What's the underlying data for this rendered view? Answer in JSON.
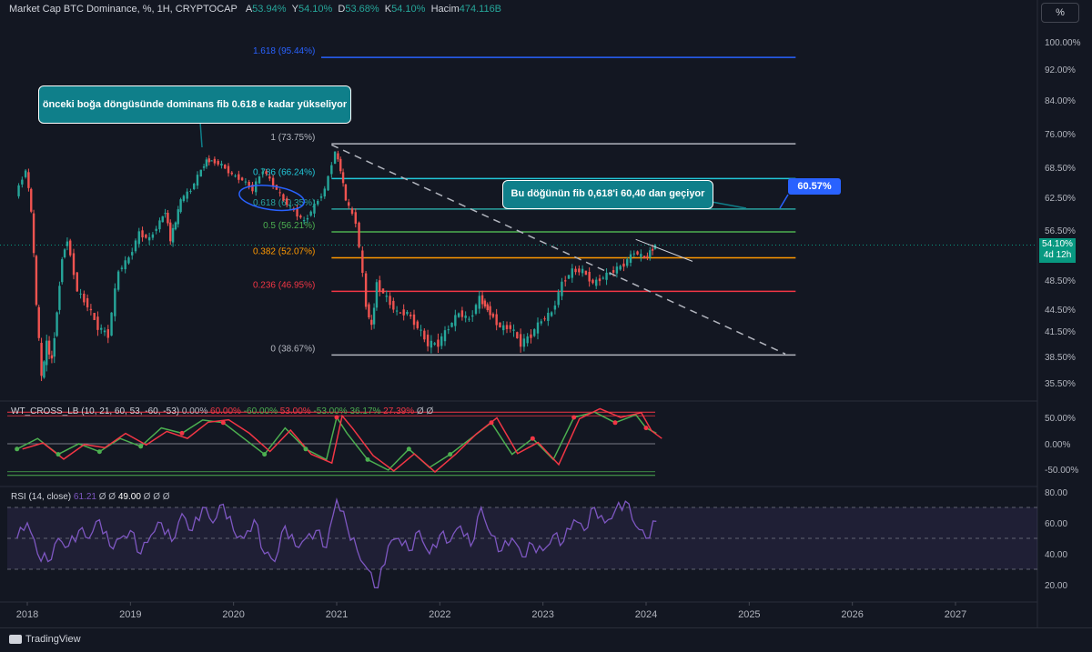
{
  "header": {
    "symbol": "Market Cap BTC Dominance, %, 1H, CRYPTOCAP",
    "o_label": "A",
    "o_value": "53.94%",
    "h_label": "Y",
    "h_value": "54.10%",
    "l_label": "D",
    "l_value": "53.68%",
    "c_label": "K",
    "c_value": "54.10%",
    "vol_label": "Hacim",
    "vol_value": "474.116B",
    "scale_button": "%"
  },
  "colors": {
    "background": "#131722",
    "up": "#26a69a",
    "down": "#ef5350",
    "fib_1": "#b2b5be",
    "fib_786": "#22c7d8",
    "fib_618": "#2aa3a0",
    "fib_5": "#4caf50",
    "fib_382": "#ff9800",
    "fib_236": "#f23645",
    "fib_0": "#b2b5be",
    "fib_1618": "#2962ff",
    "rsi": "#7e57c2"
  },
  "annotations": {
    "note1": "önceki boğa döngüsünde dominans fib 0.618 e kadar yükseliyor",
    "note2": "Bu döğünün fib 0,618'i 60,40 dan geçiyor",
    "callout": "60.57%",
    "last_price": "54.10%",
    "last_time": "4d 12h"
  },
  "fib_levels": [
    {
      "label": "1.618 (95.44%)",
      "value": 95.44,
      "color": "#2962ff"
    },
    {
      "label": "1 (73.75%)",
      "value": 73.75,
      "color": "#b2b5be"
    },
    {
      "label": "0.786 (66.24%)",
      "value": 66.24,
      "color": "#22c7d8"
    },
    {
      "label": "0.618 (60.35%)",
      "value": 60.35,
      "color": "#2aa3a0"
    },
    {
      "label": "0.5 (56.21%)",
      "value": 56.21,
      "color": "#4caf50"
    },
    {
      "label": "0.382 (52.07%)",
      "value": 52.07,
      "color": "#ff9800"
    },
    {
      "label": "0.236 (46.95%)",
      "value": 46.95,
      "color": "#f23645"
    },
    {
      "label": "0 (38.67%)",
      "value": 38.67,
      "color": "#b2b5be"
    }
  ],
  "wt_title": "WT_CROSS_LB (10, 21, 60, 53, -60, -53)",
  "wt_values": [
    {
      "text": "0.00%",
      "color": "#b2b5be"
    },
    {
      "text": "60.00%",
      "color": "#f23645"
    },
    {
      "text": "-60.00%",
      "color": "#4caf50"
    },
    {
      "text": "53.00%",
      "color": "#f23645"
    },
    {
      "text": "-53.00%",
      "color": "#4caf50"
    },
    {
      "text": "36.17%",
      "color": "#4caf50"
    },
    {
      "text": "27.39%",
      "color": "#f23645"
    },
    {
      "text": "Ø",
      "color": "#b2b5be"
    },
    {
      "text": "Ø",
      "color": "#b2b5be"
    }
  ],
  "rsi_title": "RSI (14, close)",
  "rsi_values": [
    {
      "text": "61.21",
      "color": "#7e57c2"
    },
    {
      "text": "Ø",
      "color": "#b2b5be"
    },
    {
      "text": "Ø",
      "color": "#b2b5be"
    },
    {
      "text": "49.00",
      "color": "#ffffff"
    },
    {
      "text": "Ø",
      "color": "#b2b5be"
    },
    {
      "text": "Ø",
      "color": "#b2b5be"
    },
    {
      "text": "Ø",
      "color": "#b2b5be"
    }
  ],
  "footer": {
    "brand": "TradingView"
  },
  "chart_data": {
    "type": "candlestick",
    "price_axis_ticks": [
      "100.00%",
      "92.00%",
      "84.00%",
      "76.00%",
      "68.50%",
      "62.50%",
      "56.50%",
      "48.50%",
      "44.50%",
      "41.50%",
      "38.50%",
      "35.50%"
    ],
    "price_axis_values": [
      100,
      92,
      84,
      76,
      68.5,
      62.5,
      56.5,
      48.5,
      44.5,
      41.5,
      38.5,
      35.5
    ],
    "x_ticks": [
      "2018",
      "2019",
      "2020",
      "2021",
      "2022",
      "2023",
      "2024",
      "2025",
      "2026",
      "2027"
    ],
    "series": [
      {
        "name": "BTC Dominance",
        "x": [
          2017.9,
          2018.0,
          2018.05,
          2018.1,
          2018.15,
          2018.2,
          2018.25,
          2018.3,
          2018.35,
          2018.4,
          2018.5,
          2018.6,
          2018.7,
          2018.8,
          2018.9,
          2019.0,
          2019.1,
          2019.2,
          2019.3,
          2019.35,
          2019.4,
          2019.45,
          2019.5,
          2019.6,
          2019.7,
          2019.75,
          2019.8,
          2019.9,
          2020.0,
          2020.1,
          2020.2,
          2020.3,
          2020.4,
          2020.5,
          2020.6,
          2020.7,
          2020.8,
          2020.9,
          2021.0,
          2021.05,
          2021.1,
          2021.2,
          2021.3,
          2021.35,
          2021.4,
          2021.5,
          2021.6,
          2021.7,
          2021.8,
          2021.9,
          2022.0,
          2022.1,
          2022.2,
          2022.3,
          2022.4,
          2022.45,
          2022.5,
          2022.6,
          2022.7,
          2022.8,
          2022.9,
          2023.0,
          2023.1,
          2023.2,
          2023.3,
          2023.4,
          2023.5,
          2023.6,
          2023.7,
          2023.8,
          2023.9,
          2024.0,
          2024.05,
          2024.1
        ],
        "values": [
          63,
          68,
          60,
          45,
          36,
          40,
          38,
          44,
          52,
          55,
          47,
          45,
          42,
          41,
          50,
          52,
          56,
          55,
          58,
          60,
          55,
          58,
          62,
          64,
          68,
          70,
          70,
          69,
          67,
          66,
          64,
          68,
          65,
          62,
          60,
          58,
          61,
          64,
          72,
          68,
          62,
          58,
          45,
          42,
          48,
          46,
          44,
          44,
          42,
          40,
          40,
          42,
          44,
          43,
          46,
          45,
          44,
          42,
          42,
          40,
          41,
          43,
          44,
          48,
          50,
          50,
          48,
          49,
          50,
          51,
          53,
          52,
          53,
          54.1
        ]
      }
    ],
    "wt_ticks": [
      "50.00%",
      "0.00%",
      "-50.00%"
    ],
    "wt_tick_values": [
      50,
      0,
      -50
    ],
    "wt_series": {
      "name": "WT",
      "x": [
        2017.9,
        2018.1,
        2018.3,
        2018.5,
        2018.7,
        2018.9,
        2019.1,
        2019.3,
        2019.5,
        2019.7,
        2019.9,
        2020.1,
        2020.3,
        2020.5,
        2020.7,
        2020.9,
        2021.0,
        2021.1,
        2021.3,
        2021.5,
        2021.7,
        2021.9,
        2022.1,
        2022.3,
        2022.5,
        2022.7,
        2022.9,
        2023.1,
        2023.3,
        2023.5,
        2023.7,
        2023.9,
        2024.0,
        2024.1
      ],
      "values": [
        -10,
        10,
        -20,
        0,
        -15,
        10,
        -5,
        30,
        20,
        45,
        40,
        10,
        -20,
        30,
        -10,
        -30,
        50,
        20,
        -30,
        -50,
        -10,
        -45,
        -20,
        10,
        40,
        -20,
        10,
        -30,
        50,
        60,
        40,
        55,
        30,
        20
      ]
    },
    "rsi_ticks": [
      "80.00",
      "60.00",
      "40.00",
      "20.00"
    ],
    "rsi_tick_values": [
      80,
      60,
      40,
      20
    ],
    "rsi_bands": [
      70,
      50,
      30
    ],
    "rsi_series": {
      "name": "RSI",
      "x": [
        2017.9,
        2018.0,
        2018.1,
        2018.2,
        2018.3,
        2018.4,
        2018.5,
        2018.6,
        2018.7,
        2018.8,
        2018.9,
        2019.0,
        2019.1,
        2019.2,
        2019.3,
        2019.4,
        2019.5,
        2019.6,
        2019.7,
        2019.8,
        2019.9,
        2020.0,
        2020.1,
        2020.2,
        2020.3,
        2020.4,
        2020.5,
        2020.6,
        2020.7,
        2020.8,
        2020.9,
        2021.0,
        2021.1,
        2021.2,
        2021.3,
        2021.4,
        2021.5,
        2021.6,
        2021.7,
        2021.8,
        2021.9,
        2022.0,
        2022.1,
        2022.2,
        2022.3,
        2022.4,
        2022.5,
        2022.6,
        2022.7,
        2022.8,
        2022.9,
        2023.0,
        2023.1,
        2023.2,
        2023.3,
        2023.4,
        2023.5,
        2023.6,
        2023.7,
        2023.8,
        2023.9,
        2024.0,
        2024.1
      ],
      "values": [
        50,
        60,
        40,
        35,
        50,
        45,
        55,
        50,
        62,
        45,
        50,
        55,
        40,
        52,
        60,
        48,
        66,
        55,
        70,
        60,
        72,
        55,
        50,
        62,
        40,
        35,
        58,
        45,
        50,
        55,
        44,
        75,
        58,
        42,
        30,
        18,
        45,
        50,
        42,
        55,
        40,
        52,
        48,
        58,
        45,
        70,
        52,
        42,
        50,
        38,
        46,
        42,
        52,
        48,
        62,
        55,
        70,
        60,
        68,
        74,
        58,
        50,
        61
      ]
    }
  }
}
